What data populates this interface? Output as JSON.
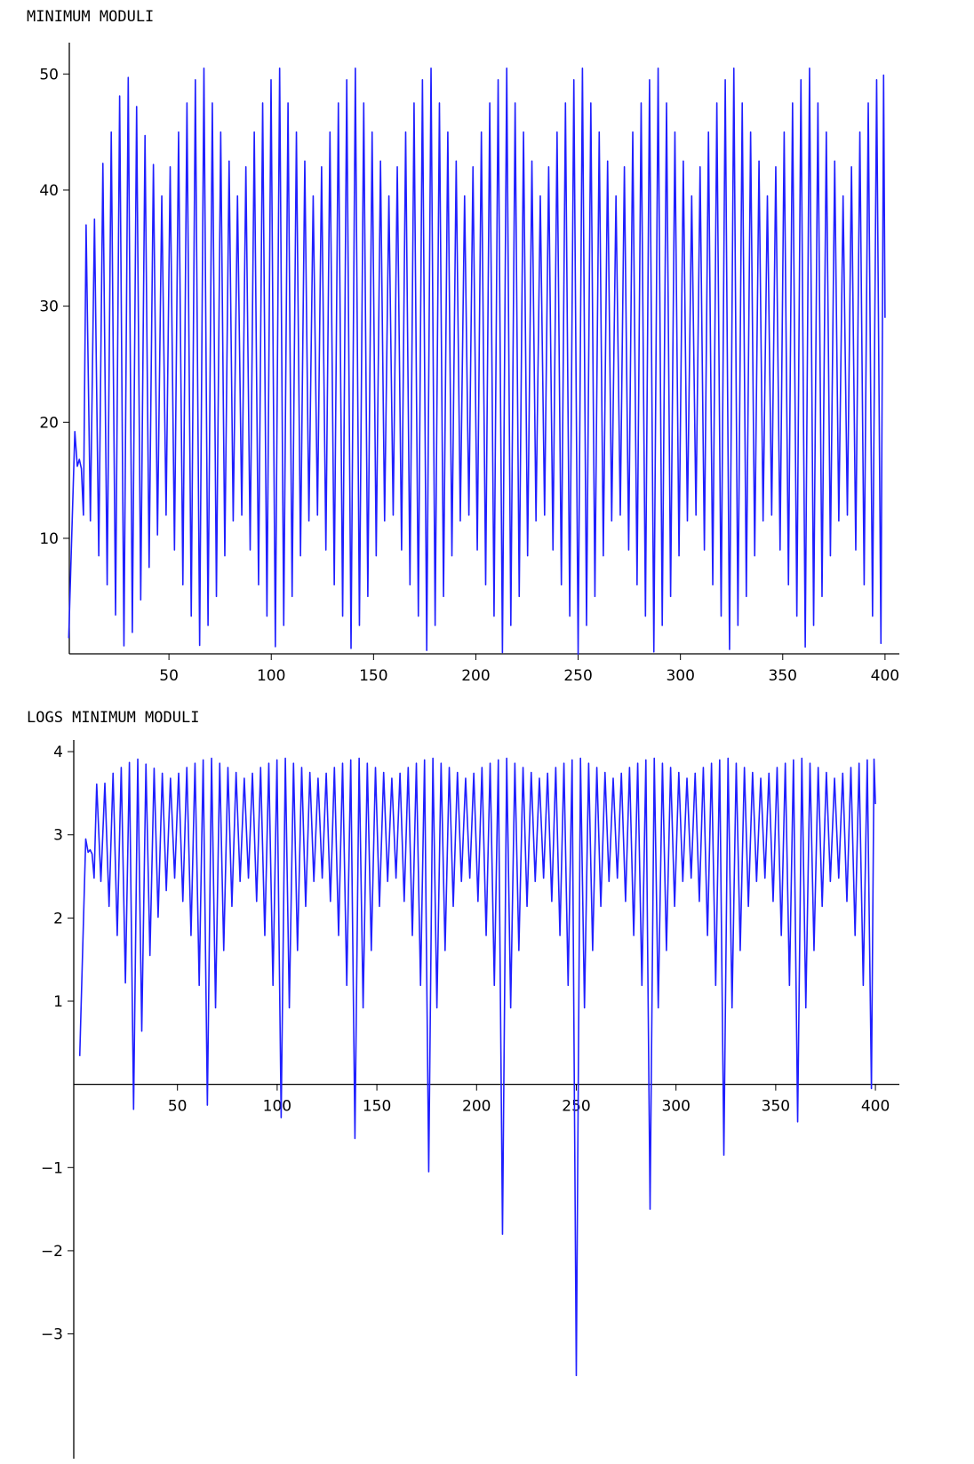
{
  "chart_data": [
    {
      "type": "line",
      "title": "MINIMUM MODULI",
      "color": "#1f1fff",
      "grid": false,
      "xlim": [
        1.3,
        407
      ],
      "ylim": [
        0.05,
        52.7
      ],
      "xticks": [
        50,
        100,
        150,
        200,
        250,
        300,
        350,
        400
      ],
      "yticks": [
        10,
        20,
        30,
        40,
        50
      ],
      "x": [
        1,
        4,
        5.2,
        6.2,
        7.2,
        8.2,
        9.5,
        11.6,
        13.6,
        15.7,
        17.7,
        19.8,
        21.8,
        23.9,
        25.9,
        28,
        30.1,
        32.1,
        34.2,
        36.2,
        38.3,
        40.3,
        42.4,
        44.4,
        46.5,
        48.6,
        50.6,
        52.7,
        54.7,
        56.8,
        58.8,
        60.9,
        62.9,
        65,
        67.1,
        69.1,
        71.2,
        73.2,
        75.3,
        77.3,
        79.4,
        81.4,
        83.5,
        85.6,
        87.6,
        89.7,
        91.7,
        93.8,
        95.8,
        97.9,
        99.9,
        102,
        104.1,
        106.1,
        108.2,
        110.2,
        112.3,
        114.3,
        116.4,
        118.4,
        120.5,
        122.6,
        124.6,
        126.7,
        128.7,
        130.8,
        132.8,
        134.9,
        136.9,
        139,
        141.1,
        143.1,
        145.2,
        147.2,
        149.3,
        151.3,
        153.4,
        155.4,
        157.5,
        159.6,
        161.6,
        163.7,
        165.7,
        167.8,
        169.8,
        171.9,
        173.9,
        176,
        178.1,
        180.1,
        182.2,
        184.2,
        186.3,
        188.3,
        190.4,
        192.4,
        194.5,
        196.6,
        198.6,
        200.7,
        202.7,
        204.8,
        206.8,
        208.9,
        210.9,
        213,
        215.1,
        217.1,
        219.2,
        221.2,
        223.3,
        225.3,
        227.4,
        229.4,
        231.5,
        233.6,
        235.6,
        237.7,
        239.7,
        241.8,
        243.8,
        245.9,
        247.9,
        250,
        252.1,
        254.1,
        256.2,
        258.2,
        260.3,
        262.3,
        264.4,
        266.4,
        268.5,
        270.6,
        272.6,
        274.7,
        276.7,
        278.8,
        280.8,
        282.9,
        284.9,
        287,
        289.1,
        291.1,
        293.2,
        295.2,
        297.3,
        299.3,
        301.4,
        303.4,
        305.5,
        307.6,
        309.6,
        311.7,
        313.7,
        315.8,
        317.8,
        319.9,
        321.9,
        324,
        326.1,
        328.1,
        330.2,
        332.2,
        334.3,
        336.3,
        338.4,
        340.4,
        342.5,
        344.6,
        346.6,
        348.7,
        350.7,
        352.8,
        354.8,
        356.9,
        358.9,
        361,
        363.1,
        365.1,
        367.2,
        369.2,
        371.3,
        373.3,
        375.4,
        377.4,
        379.5,
        381.6,
        383.6,
        385.7,
        387.7,
        389.8,
        391.8,
        393.9,
        395.9,
        398,
        399.3,
        400
      ],
      "values": [
        1.4,
        19.2,
        16.2,
        16.8,
        16,
        12,
        37,
        11.5,
        37.5,
        8.5,
        42.3,
        6,
        45,
        3.4,
        48.1,
        0.74,
        49.7,
        1.9,
        47.2,
        4.7,
        44.7,
        7.5,
        42.2,
        10.3,
        39.5,
        12,
        42,
        9,
        45,
        6,
        47.5,
        3.3,
        49.5,
        0.78,
        50.5,
        2.5,
        47.5,
        5,
        45,
        8.5,
        42.5,
        11.5,
        39.5,
        12,
        42,
        9,
        45,
        6,
        47.5,
        3.3,
        49.5,
        0.67,
        50.5,
        2.5,
        47.5,
        5,
        45,
        8.5,
        42.5,
        11.5,
        39.5,
        12,
        42,
        9,
        45,
        6,
        47.5,
        3.3,
        49.5,
        0.52,
        50.5,
        2.5,
        47.5,
        5,
        45,
        8.5,
        42.5,
        11.5,
        39.5,
        12,
        42,
        9,
        45,
        6,
        47.5,
        3.3,
        49.5,
        0.35,
        50.5,
        2.5,
        47.5,
        5,
        45,
        8.5,
        42.5,
        11.5,
        39.5,
        12,
        42,
        9,
        45,
        6,
        47.5,
        3.3,
        49.5,
        0.165,
        50.5,
        2.5,
        47.5,
        5,
        45,
        8.5,
        42.5,
        11.5,
        39.5,
        12,
        42,
        9,
        45,
        6,
        47.5,
        3.3,
        49.5,
        0.03,
        50.5,
        2.5,
        47.5,
        5,
        45,
        8.5,
        42.5,
        11.5,
        39.5,
        12,
        42,
        9,
        45,
        6,
        47.5,
        3.3,
        49.5,
        0.22,
        50.5,
        2.5,
        47.5,
        5,
        45,
        8.5,
        42.5,
        11.5,
        39.5,
        12,
        42,
        9,
        45,
        6,
        47.5,
        3.3,
        49.5,
        0.43,
        50.5,
        2.5,
        47.5,
        5,
        45,
        8.5,
        42.5,
        11.5,
        39.5,
        12,
        42,
        9,
        45,
        6,
        47.5,
        3.3,
        49.5,
        0.64,
        50.5,
        2.5,
        47.5,
        5,
        45,
        8.5,
        42.5,
        11.5,
        39.5,
        12,
        42,
        9,
        45,
        6,
        47.5,
        3.3,
        49.5,
        0.95,
        49.9,
        29
      ]
    },
    {
      "type": "line",
      "title": "LOGS MINIMUM MODULI",
      "color": "#1f1fff",
      "grid": false,
      "xlim": [
        -2,
        412
      ],
      "ylim": [
        -4.5,
        4.14
      ],
      "xticks": [
        50,
        100,
        150,
        200,
        250,
        300,
        350,
        400
      ],
      "yticks": [
        {
          "value": -3,
          "label": "−3"
        },
        {
          "value": -2,
          "label": "−2"
        },
        {
          "value": -1,
          "label": "−1"
        },
        1,
        2,
        3,
        4
      ],
      "x": [
        1,
        4,
        5.2,
        6.2,
        7.2,
        8.2,
        9.5,
        11.6,
        13.6,
        15.7,
        17.7,
        19.8,
        21.8,
        23.9,
        25.9,
        28,
        30.1,
        32.1,
        34.2,
        36.2,
        38.3,
        40.3,
        42.4,
        44.4,
        46.5,
        48.6,
        50.6,
        52.7,
        54.7,
        56.8,
        58.8,
        60.9,
        62.9,
        65,
        67.1,
        69.1,
        71.2,
        73.2,
        75.3,
        77.3,
        79.4,
        81.4,
        83.5,
        85.6,
        87.6,
        89.7,
        91.7,
        93.8,
        95.8,
        97.9,
        99.9,
        102,
        104.1,
        106.1,
        108.2,
        110.2,
        112.3,
        114.3,
        116.4,
        118.4,
        120.5,
        122.6,
        124.6,
        126.7,
        128.7,
        130.8,
        132.8,
        134.9,
        136.9,
        139,
        141.1,
        143.1,
        145.2,
        147.2,
        149.3,
        151.3,
        153.4,
        155.4,
        157.5,
        159.6,
        161.6,
        163.7,
        165.7,
        167.8,
        169.8,
        171.9,
        173.9,
        176,
        178.1,
        180.1,
        182.2,
        184.2,
        186.3,
        188.3,
        190.4,
        192.4,
        194.5,
        196.6,
        198.6,
        200.7,
        202.7,
        204.8,
        206.8,
        208.9,
        210.9,
        213,
        215.1,
        217.1,
        219.2,
        221.2,
        223.3,
        225.3,
        227.4,
        229.4,
        231.5,
        233.6,
        235.6,
        237.7,
        239.7,
        241.8,
        243.8,
        245.9,
        247.9,
        250,
        252.1,
        254.1,
        256.2,
        258.2,
        260.3,
        262.3,
        264.4,
        266.4,
        268.5,
        270.6,
        272.6,
        274.7,
        276.7,
        278.8,
        280.8,
        282.9,
        284.9,
        287,
        289.1,
        291.1,
        293.2,
        295.2,
        297.3,
        299.3,
        301.4,
        303.4,
        305.5,
        307.6,
        309.6,
        311.7,
        313.7,
        315.8,
        317.8,
        319.9,
        321.9,
        324,
        326.1,
        328.1,
        330.2,
        332.2,
        334.3,
        336.3,
        338.4,
        340.4,
        342.5,
        344.6,
        346.6,
        348.7,
        350.7,
        352.8,
        354.8,
        356.9,
        358.9,
        361,
        363.1,
        365.1,
        367.2,
        369.2,
        371.3,
        373.3,
        375.4,
        377.4,
        379.5,
        381.6,
        383.6,
        385.7,
        387.7,
        389.8,
        391.8,
        393.9,
        395.9,
        398,
        399.3,
        400
      ],
      "values": [
        0.34,
        2.95,
        2.79,
        2.82,
        2.77,
        2.48,
        3.61,
        2.44,
        3.62,
        2.14,
        3.74,
        1.79,
        3.81,
        1.22,
        3.87,
        -0.3,
        3.91,
        0.64,
        3.85,
        1.55,
        3.8,
        2.01,
        3.74,
        2.33,
        3.68,
        2.48,
        3.74,
        2.2,
        3.81,
        1.79,
        3.86,
        1.19,
        3.9,
        -0.25,
        3.92,
        0.92,
        3.86,
        1.61,
        3.81,
        2.14,
        3.75,
        2.44,
        3.68,
        2.48,
        3.74,
        2.2,
        3.81,
        1.79,
        3.86,
        1.19,
        3.9,
        -0.4,
        3.92,
        0.92,
        3.86,
        1.61,
        3.81,
        2.14,
        3.75,
        2.44,
        3.68,
        2.48,
        3.74,
        2.2,
        3.81,
        1.79,
        3.86,
        1.19,
        3.9,
        -0.65,
        3.92,
        0.92,
        3.86,
        1.61,
        3.81,
        2.14,
        3.75,
        2.44,
        3.68,
        2.48,
        3.74,
        2.2,
        3.81,
        1.79,
        3.86,
        1.19,
        3.9,
        -1.05,
        3.92,
        0.92,
        3.86,
        1.61,
        3.81,
        2.14,
        3.75,
        2.44,
        3.68,
        2.48,
        3.74,
        2.2,
        3.81,
        1.79,
        3.86,
        1.19,
        3.9,
        -1.8,
        3.92,
        0.92,
        3.86,
        1.61,
        3.81,
        2.14,
        3.75,
        2.44,
        3.68,
        2.48,
        3.74,
        2.2,
        3.81,
        1.79,
        3.86,
        1.19,
        3.9,
        -3.5,
        3.92,
        0.92,
        3.86,
        1.61,
        3.81,
        2.14,
        3.75,
        2.44,
        3.68,
        2.48,
        3.74,
        2.2,
        3.81,
        1.79,
        3.86,
        1.19,
        3.9,
        -1.5,
        3.92,
        0.92,
        3.86,
        1.61,
        3.81,
        2.14,
        3.75,
        2.44,
        3.68,
        2.48,
        3.74,
        2.2,
        3.81,
        1.79,
        3.86,
        1.19,
        3.9,
        -0.85,
        3.92,
        0.92,
        3.86,
        1.61,
        3.81,
        2.14,
        3.75,
        2.44,
        3.68,
        2.48,
        3.74,
        2.2,
        3.81,
        1.79,
        3.86,
        1.19,
        3.9,
        -0.45,
        3.92,
        0.92,
        3.86,
        1.61,
        3.81,
        2.14,
        3.75,
        2.44,
        3.68,
        2.48,
        3.74,
        2.2,
        3.81,
        1.79,
        3.86,
        1.19,
        3.9,
        -0.05,
        3.91,
        3.37
      ]
    }
  ]
}
